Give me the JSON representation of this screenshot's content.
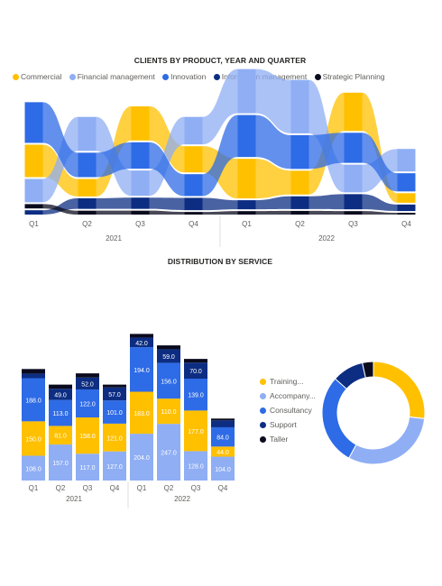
{
  "colors": {
    "Commercial": "#FFC000",
    "Financial management": "#8FAEF4",
    "Innovation": "#2E6BE6",
    "Information management": "#0C2D82",
    "Strategic Planning": "#0B0B1F",
    "Training...": "#FFC000",
    "Accompany...": "#8FAEF4",
    "Consultancy": "#2E6BE6",
    "Support": "#0C2D82",
    "Taller": "#0B0B1F"
  },
  "chart_data": [
    {
      "type": "area",
      "subtype": "ribbon",
      "title": "CLIENTS BY PRODUCT, YEAR AND QUARTER",
      "legend_position": "top-left",
      "categories": [
        "Q1",
        "Q2",
        "Q3",
        "Q4",
        "Q1",
        "Q2",
        "Q3",
        "Q4"
      ],
      "groups": [
        {
          "label": "2021",
          "span": 4
        },
        {
          "label": "2022",
          "span": 4
        }
      ],
      "series": [
        {
          "name": "Commercial",
          "values": [
            150,
            81,
            158,
            121,
            183,
            110,
            177,
            44
          ]
        },
        {
          "name": "Financial management",
          "values": [
            108,
            157,
            117,
            127,
            204,
            247,
            128,
            104
          ]
        },
        {
          "name": "Innovation",
          "values": [
            188,
            113,
            122,
            101,
            194,
            156,
            139,
            84
          ]
        },
        {
          "name": "Information management",
          "values": [
            20,
            49,
            52,
            57,
            42,
            59,
            70,
            30
          ]
        },
        {
          "name": "Strategic Planning",
          "values": [
            20,
            18,
            18,
            12,
            16,
            17,
            16,
            8
          ]
        }
      ]
    },
    {
      "type": "bar",
      "subtype": "stacked",
      "title": "DISTRIBUTION BY SERVICE",
      "legend_position": "right",
      "categories": [
        "Q1",
        "Q2",
        "Q3",
        "Q4",
        "Q1",
        "Q2",
        "Q3",
        "Q4"
      ],
      "groups": [
        {
          "label": "2021",
          "span": 4
        },
        {
          "label": "2022",
          "span": 4
        }
      ],
      "series": [
        {
          "name": "Accompany...",
          "values": [
            108,
            157,
            117,
            127,
            204,
            247,
            128,
            104
          ]
        },
        {
          "name": "Training...",
          "values": [
            150,
            81,
            158,
            121,
            183,
            110,
            177,
            44
          ]
        },
        {
          "name": "Consultancy",
          "values": [
            188,
            113,
            122,
            101,
            194,
            156,
            139,
            84
          ]
        },
        {
          "name": "Support",
          "values": [
            20,
            49,
            52,
            57,
            42,
            59,
            70,
            30
          ]
        },
        {
          "name": "Taller",
          "values": [
            20,
            18,
            18,
            12,
            16,
            17,
            16,
            8
          ]
        }
      ],
      "data_labels": [
        [
          "108.0",
          "157.0",
          "117.0",
          "127.0",
          "204.0",
          "247.0",
          "128.0",
          "104.0"
        ],
        [
          "150.0",
          "81.0",
          "158.0",
          "121.0",
          "183.0",
          "110.0",
          "177.0",
          "44.0"
        ],
        [
          "188.0",
          "113.0",
          "122.0",
          "101.0",
          "194.0",
          "156.0",
          "139.0",
          "84.0"
        ],
        [
          "",
          "49.0",
          "52.0",
          "57.0",
          "42.0",
          "59.0",
          "70.0",
          ""
        ],
        [
          "",
          "",
          "",
          "",
          "",
          "",
          "",
          ""
        ]
      ]
    },
    {
      "type": "pie",
      "subtype": "donut",
      "legend": [
        "Training...",
        "Accompany...",
        "Consultancy",
        "Support",
        "Taller"
      ],
      "slices": [
        {
          "name": "Training...",
          "value": 1024
        },
        {
          "name": "Accompany...",
          "value": 1192
        },
        {
          "name": "Consultancy",
          "value": 1097
        },
        {
          "name": "Support",
          "value": 379
        },
        {
          "name": "Taller",
          "value": 133
        }
      ]
    }
  ]
}
